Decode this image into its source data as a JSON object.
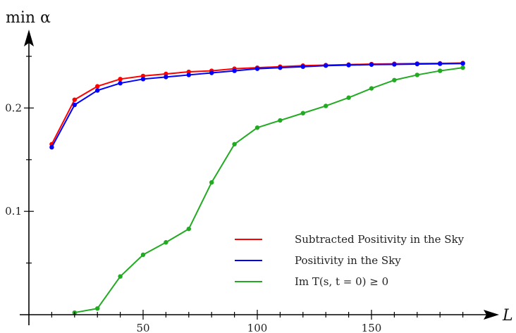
{
  "chart_data": {
    "type": "line",
    "title": "",
    "xlabel": "L",
    "ylabel": "min α",
    "xlim": [
      0,
      200
    ],
    "ylim": [
      0,
      0.265
    ],
    "x_ticks": [
      50,
      100,
      150
    ],
    "x_tick_labels": [
      "50",
      "100",
      "150"
    ],
    "y_ticks": [
      0.1,
      0.2
    ],
    "y_tick_labels": [
      "0.1",
      "0.2"
    ],
    "grid": false,
    "legend_position": "bottom-right",
    "series": [
      {
        "name": "Subtracted Positivity in the Sky",
        "color": "#ff0000",
        "x": [
          10,
          20,
          30,
          40,
          50,
          60,
          70,
          80,
          90,
          100,
          110,
          120,
          130,
          140,
          150,
          160,
          170,
          180,
          190
        ],
        "y": [
          0.165,
          0.208,
          0.221,
          0.228,
          0.231,
          0.233,
          0.235,
          0.236,
          0.238,
          0.239,
          0.24,
          0.241,
          0.2415,
          0.242,
          0.2425,
          0.2428,
          0.243,
          0.2432,
          0.2435
        ]
      },
      {
        "name": "Positivity in the Sky",
        "color": "#0000ff",
        "x": [
          10,
          20,
          30,
          40,
          50,
          60,
          70,
          80,
          90,
          100,
          110,
          120,
          130,
          140,
          150,
          160,
          170,
          180,
          190
        ],
        "y": [
          0.162,
          0.203,
          0.217,
          0.224,
          0.228,
          0.23,
          0.232,
          0.234,
          0.236,
          0.238,
          0.239,
          0.24,
          0.241,
          0.2415,
          0.242,
          0.2422,
          0.2425,
          0.2428,
          0.243
        ]
      },
      {
        "name": "Im T(s, t = 0) ≥ 0",
        "color": "#22aa22",
        "x": [
          20,
          30,
          40,
          50,
          60,
          70,
          80,
          90,
          100,
          110,
          120,
          130,
          140,
          150,
          160,
          170,
          180,
          190
        ],
        "y": [
          0.002,
          0.006,
          0.037,
          0.058,
          0.07,
          0.083,
          0.128,
          0.165,
          0.181,
          0.188,
          0.195,
          0.202,
          0.21,
          0.219,
          0.227,
          0.232,
          0.236,
          0.239
        ]
      }
    ]
  }
}
